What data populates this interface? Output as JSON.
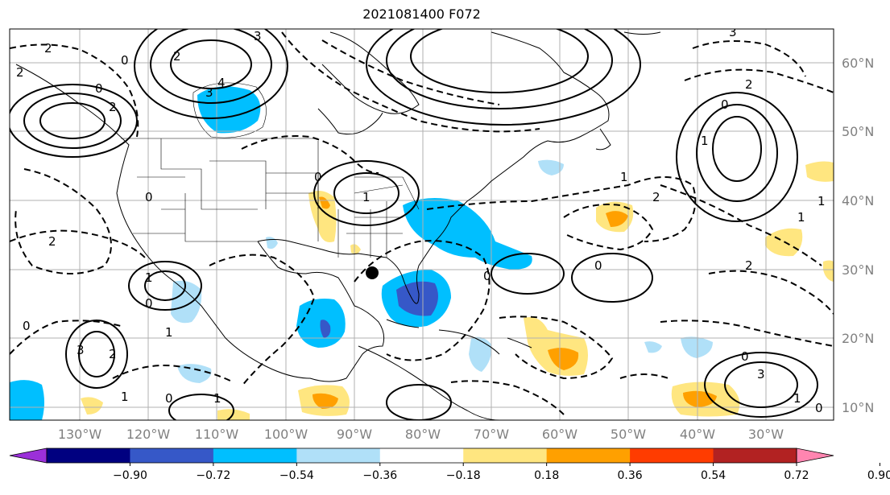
{
  "title": "2021081400 F072",
  "map": {
    "lon_labels": [
      "130°W",
      "120°W",
      "110°W",
      "100°W",
      "90°W",
      "80°W",
      "70°W",
      "60°W",
      "50°W",
      "40°W",
      "30°W"
    ],
    "lat_labels": [
      "60°N",
      "50°N",
      "40°N",
      "30°N",
      "20°N",
      "10°N"
    ],
    "colorbar": {
      "ticks": [
        "−0.90",
        "−0.72",
        "−0.54",
        "−0.36",
        "−0.18",
        "0.18",
        "0.36",
        "0.54",
        "0.72",
        "0.90"
      ],
      "colors": [
        "#9b30d9",
        "#000080",
        "#3658c8",
        "#00bfff",
        "#b0e0f8",
        "#ffffff",
        "#ffe680",
        "#ffa000",
        "#ff3c00",
        "#b22222",
        "#ff85b0"
      ]
    },
    "contour_labels": [
      "0",
      "2",
      "3",
      "2",
      "4",
      "3",
      "2",
      "0",
      "2",
      "0",
      "0",
      "2",
      "1",
      "0",
      "1",
      "2",
      "3",
      "0",
      "1",
      "2",
      "0",
      "3",
      "1",
      "1",
      "1",
      "0",
      "1",
      "0",
      "0",
      "3",
      "2",
      "2",
      "1",
      "1",
      "0",
      "1",
      "0"
    ]
  }
}
